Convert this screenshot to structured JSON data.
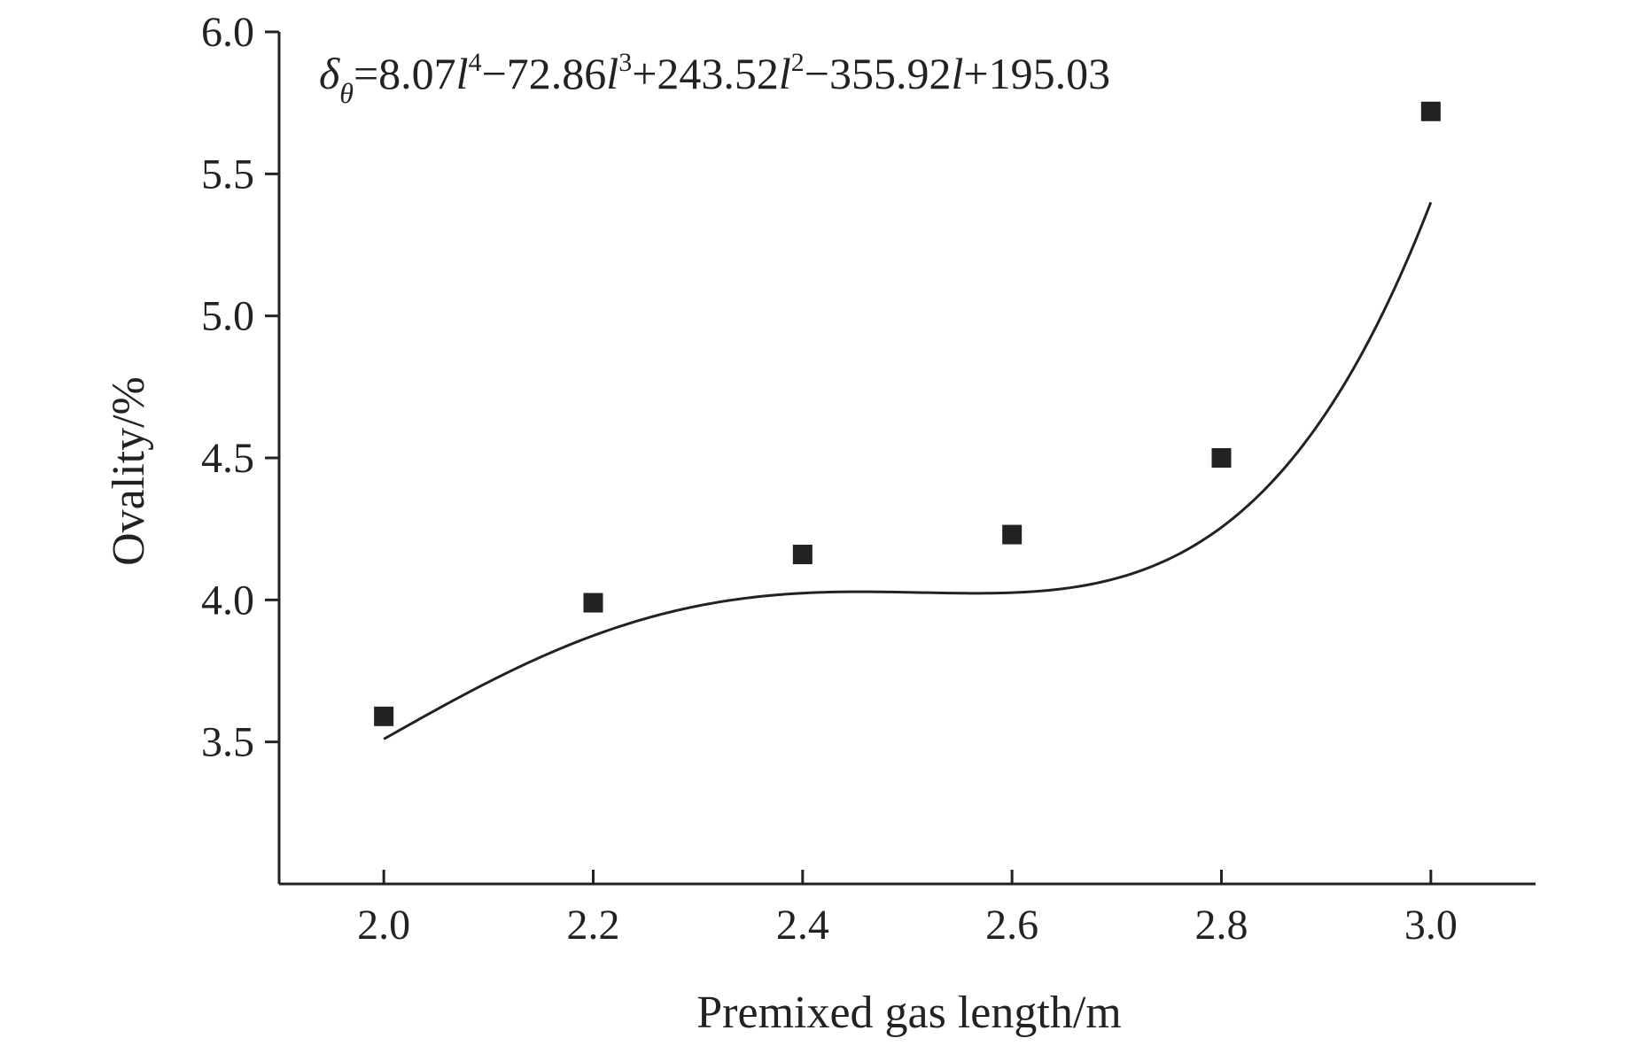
{
  "chart_data": {
    "type": "scatter",
    "title": "",
    "xlabel": "Premixed gas length/m",
    "ylabel": "Ovality/%",
    "xlim": [
      1.9,
      3.1
    ],
    "ylim": [
      3.0,
      6.0
    ],
    "x_ticks": [
      2.0,
      2.2,
      2.4,
      2.6,
      2.8,
      3.0
    ],
    "x_tick_labels": [
      "2.0",
      "2.2",
      "2.4",
      "2.6",
      "2.8",
      "3.0"
    ],
    "y_ticks": [
      3.5,
      4.0,
      4.5,
      5.0,
      5.5,
      6.0
    ],
    "y_tick_labels": [
      "3.5",
      "4.0",
      "4.5",
      "5.0",
      "5.5",
      "6.0"
    ],
    "grid": false,
    "legend": "none",
    "series": [
      {
        "marker": "square",
        "x": [
          2.0,
          2.2,
          2.4,
          2.6,
          2.8,
          3.0
        ],
        "y": [
          3.59,
          3.99,
          4.16,
          4.23,
          4.5,
          5.72
        ]
      }
    ],
    "fit_curve": {
      "type": "polynomial",
      "coefficients_high_to_low": [
        8.07,
        -72.86,
        243.52,
        -355.92,
        195.03
      ],
      "x_range": [
        2.0,
        3.0
      ]
    },
    "annotation": {
      "equation": {
        "lhs": "δ",
        "lhs_sub": "θ",
        "t1": "=8.07",
        "v1": "l",
        "p1": "4",
        "t2": "−72.86",
        "v2": "l",
        "p2": "3",
        "t3": "+243.52",
        "v3": "l",
        "p3": "2",
        "t4": "−355.92",
        "v4": "l",
        "t5": "+195.03"
      }
    },
    "colors": {
      "marker": "#222222",
      "line": "#222222",
      "axis": "#222222"
    }
  }
}
